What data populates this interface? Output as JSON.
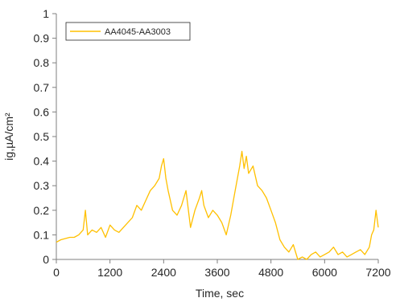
{
  "chart_data": {
    "type": "line",
    "xlabel": "Time, sec",
    "ylabel": "ig,µA/cm²",
    "xlim": [
      0,
      7200
    ],
    "ylim": [
      0,
      1
    ],
    "x_ticks": [
      0,
      1200,
      2400,
      3600,
      4800,
      6000,
      7200
    ],
    "y_ticks": [
      0,
      0.1,
      0.2,
      0.3,
      0.4,
      0.5,
      0.6,
      0.7,
      0.8,
      0.9,
      1
    ],
    "x_tick_labels": [
      "0",
      "1200",
      "2400",
      "3600",
      "4800",
      "6000",
      "7200"
    ],
    "y_tick_labels": [
      "0",
      "0.1",
      "0.2",
      "0.3",
      "0.4",
      "0.5",
      "0.6",
      "0.7",
      "0.8",
      "0.9",
      "1"
    ],
    "grid": false,
    "legend_position": "top-left",
    "series": [
      {
        "name": "AA4045-AA3003",
        "color": "#FFC000",
        "x": [
          0,
          100,
          200,
          300,
          400,
          500,
          600,
          650,
          700,
          800,
          900,
          1000,
          1100,
          1200,
          1300,
          1400,
          1500,
          1600,
          1700,
          1800,
          1900,
          2000,
          2100,
          2200,
          2300,
          2350,
          2400,
          2450,
          2500,
          2600,
          2700,
          2800,
          2900,
          3000,
          3100,
          3200,
          3250,
          3300,
          3400,
          3500,
          3600,
          3700,
          3800,
          3900,
          4000,
          4100,
          4150,
          4200,
          4250,
          4300,
          4400,
          4500,
          4600,
          4700,
          4800,
          4900,
          5000,
          5100,
          5200,
          5300,
          5400,
          5500,
          5600,
          5700,
          5800,
          5900,
          6000,
          6100,
          6200,
          6300,
          6400,
          6500,
          6600,
          6700,
          6800,
          6900,
          7000,
          7050,
          7100,
          7150,
          7200
        ],
        "y": [
          0.07,
          0.08,
          0.085,
          0.09,
          0.09,
          0.1,
          0.12,
          0.2,
          0.1,
          0.12,
          0.11,
          0.13,
          0.09,
          0.14,
          0.12,
          0.11,
          0.13,
          0.15,
          0.17,
          0.22,
          0.2,
          0.24,
          0.28,
          0.3,
          0.33,
          0.38,
          0.41,
          0.33,
          0.28,
          0.2,
          0.18,
          0.22,
          0.28,
          0.13,
          0.2,
          0.25,
          0.28,
          0.22,
          0.17,
          0.2,
          0.18,
          0.15,
          0.1,
          0.18,
          0.28,
          0.38,
          0.44,
          0.37,
          0.42,
          0.35,
          0.38,
          0.3,
          0.28,
          0.25,
          0.2,
          0.15,
          0.08,
          0.05,
          0.03,
          0.06,
          0.0,
          0.01,
          0.0,
          0.02,
          0.03,
          0.01,
          0.02,
          0.03,
          0.05,
          0.02,
          0.03,
          0.01,
          0.02,
          0.03,
          0.04,
          0.02,
          0.05,
          0.1,
          0.12,
          0.2,
          0.13
        ]
      }
    ]
  }
}
